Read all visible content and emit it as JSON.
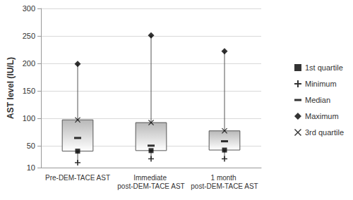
{
  "chart_data": {
    "type": "box",
    "y_label": "AST level (IU/L)",
    "categories": [
      "Pre-DEM-TACE AST",
      "Immediate post-DEM-TACE AST",
      "1 month post-DEM-TACE AST"
    ],
    "ylim": [
      10,
      300
    ],
    "yticks": [
      10,
      50,
      100,
      150,
      200,
      250,
      300
    ],
    "grid": true,
    "legend": "right",
    "series": [
      {
        "name": "1st quartile",
        "marker": "square",
        "color": "#000000",
        "values": [
          40,
          41,
          42
        ]
      },
      {
        "name": "Minimum",
        "marker": "plus",
        "color": "#000000",
        "values": [
          19,
          26,
          26
        ]
      },
      {
        "name": "Median",
        "marker": "dash",
        "color": "#000000",
        "values": [
          64,
          50,
          58
        ]
      },
      {
        "name": "Maximum",
        "marker": "diamond",
        "color": "#000000",
        "values": [
          199,
          251,
          222
        ]
      },
      {
        "name": "3rd quartile",
        "marker": "cross",
        "color": "#000000",
        "values": [
          97,
          92,
          77
        ]
      }
    ]
  }
}
